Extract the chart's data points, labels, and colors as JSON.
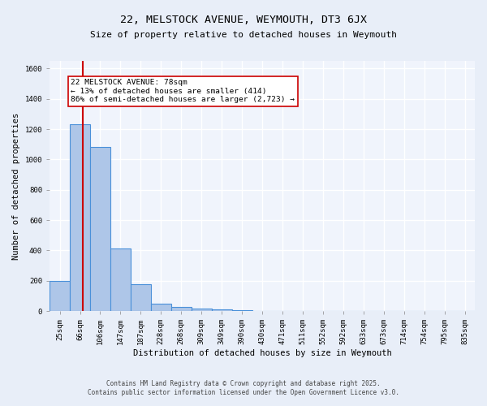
{
  "title": "22, MELSTOCK AVENUE, WEYMOUTH, DT3 6JX",
  "subtitle": "Size of property relative to detached houses in Weymouth",
  "xlabel": "Distribution of detached houses by size in Weymouth",
  "ylabel": "Number of detached properties",
  "categories": [
    "25sqm",
    "66sqm",
    "106sqm",
    "147sqm",
    "187sqm",
    "228sqm",
    "268sqm",
    "309sqm",
    "349sqm",
    "390sqm",
    "430sqm",
    "471sqm",
    "511sqm",
    "552sqm",
    "592sqm",
    "633sqm",
    "673sqm",
    "714sqm",
    "754sqm",
    "795sqm",
    "835sqm"
  ],
  "values": [
    200,
    1230,
    1080,
    415,
    180,
    50,
    27,
    18,
    10,
    7,
    0,
    0,
    0,
    0,
    0,
    0,
    0,
    0,
    0,
    0,
    0
  ],
  "bar_color": "#aec6e8",
  "bar_edge_color": "#4a90d9",
  "vline_x": 1.15,
  "vline_color": "#cc0000",
  "annotation_text": "22 MELSTOCK AVENUE: 78sqm\n← 13% of detached houses are smaller (414)\n86% of semi-detached houses are larger (2,723) →",
  "annotation_box_color": "#ffffff",
  "annotation_edge_color": "#cc0000",
  "ylim": [
    0,
    1650
  ],
  "yticks": [
    0,
    200,
    400,
    600,
    800,
    1000,
    1200,
    1400,
    1600
  ],
  "footer_line1": "Contains HM Land Registry data © Crown copyright and database right 2025.",
  "footer_line2": "Contains public sector information licensed under the Open Government Licence v3.0.",
  "background_color": "#e8eef8",
  "plot_background": "#f0f4fc",
  "grid_color": "#ffffff",
  "title_fontsize": 9.5,
  "subtitle_fontsize": 8,
  "label_fontsize": 7.5,
  "tick_fontsize": 6.5,
  "footer_fontsize": 5.5,
  "annotation_fontsize": 6.8
}
